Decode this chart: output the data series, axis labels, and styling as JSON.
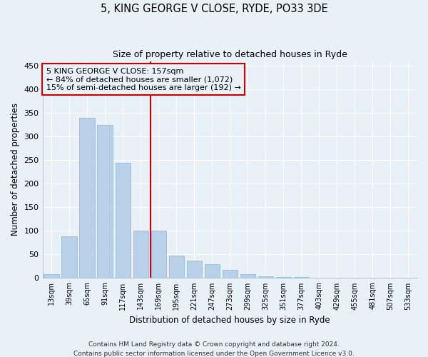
{
  "title": "5, KING GEORGE V CLOSE, RYDE, PO33 3DE",
  "subtitle": "Size of property relative to detached houses in Ryde",
  "xlabel": "Distribution of detached houses by size in Ryde",
  "ylabel": "Number of detached properties",
  "categories": [
    "13sqm",
    "39sqm",
    "65sqm",
    "91sqm",
    "117sqm",
    "143sqm",
    "169sqm",
    "195sqm",
    "221sqm",
    "247sqm",
    "273sqm",
    "299sqm",
    "325sqm",
    "351sqm",
    "377sqm",
    "403sqm",
    "429sqm",
    "455sqm",
    "481sqm",
    "507sqm",
    "533sqm"
  ],
  "values": [
    8,
    88,
    340,
    325,
    245,
    100,
    100,
    48,
    37,
    30,
    18,
    8,
    3,
    2,
    2,
    1,
    0,
    1,
    0,
    1,
    1
  ],
  "bar_color": "#b8d0e8",
  "bar_edgecolor": "#8ab4d4",
  "bg_color": "#e8f0f8",
  "grid_color": "#ffffff",
  "vline_color": "#cc0000",
  "annotation_text": "5 KING GEORGE V CLOSE: 157sqm\n← 84% of detached houses are smaller (1,072)\n15% of semi-detached houses are larger (192) →",
  "annotation_box_edgecolor": "#cc0000",
  "footer": "Contains HM Land Registry data © Crown copyright and database right 2024.\nContains public sector information licensed under the Open Government Licence v3.0.",
  "ylim": [
    0,
    460
  ],
  "yticks": [
    0,
    50,
    100,
    150,
    200,
    250,
    300,
    350,
    400,
    450
  ]
}
